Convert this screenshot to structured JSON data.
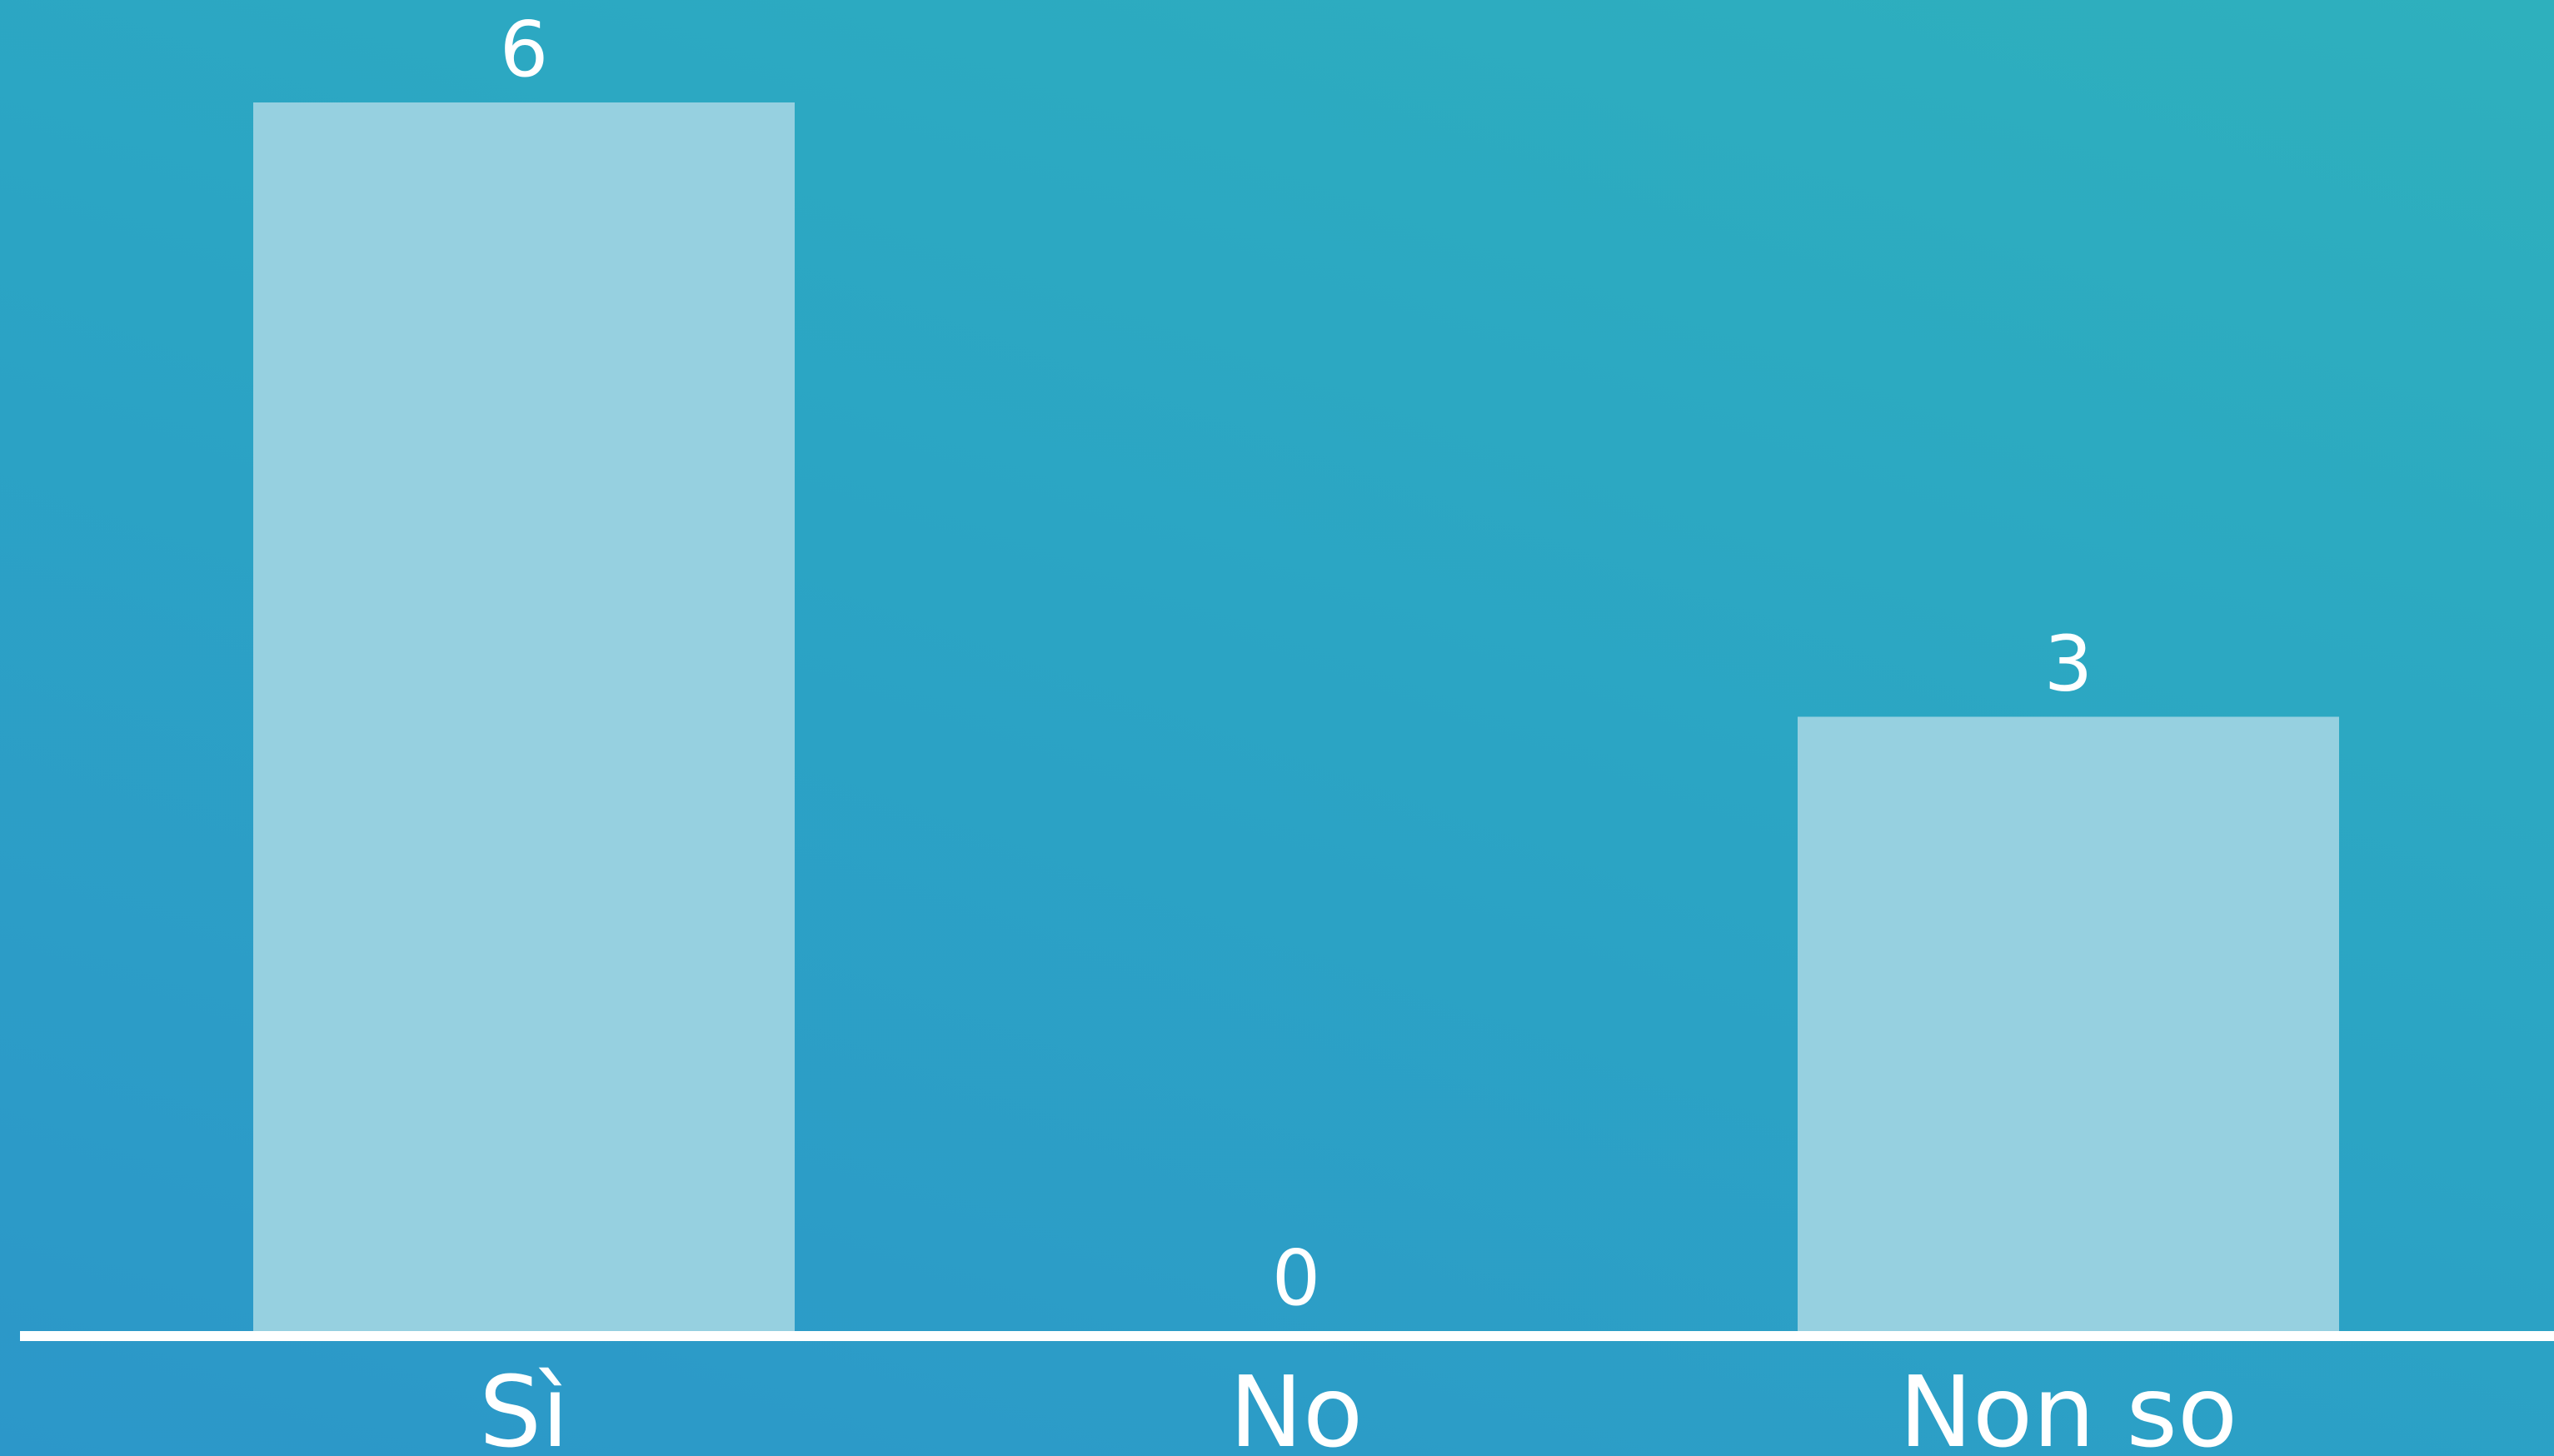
{
  "chart_data": {
    "type": "bar",
    "categories": [
      "Sì",
      "No",
      "Non so"
    ],
    "values": [
      6,
      0,
      3
    ],
    "ylim": [
      0,
      6
    ],
    "grid": false,
    "title": "",
    "xlabel": "",
    "ylabel": "",
    "colors": {
      "bar": "#96d0e0",
      "text": "#ffffff",
      "axis": "#ffffff",
      "background_start": "#2c97c9",
      "background_end": "#2eb0bd"
    }
  }
}
